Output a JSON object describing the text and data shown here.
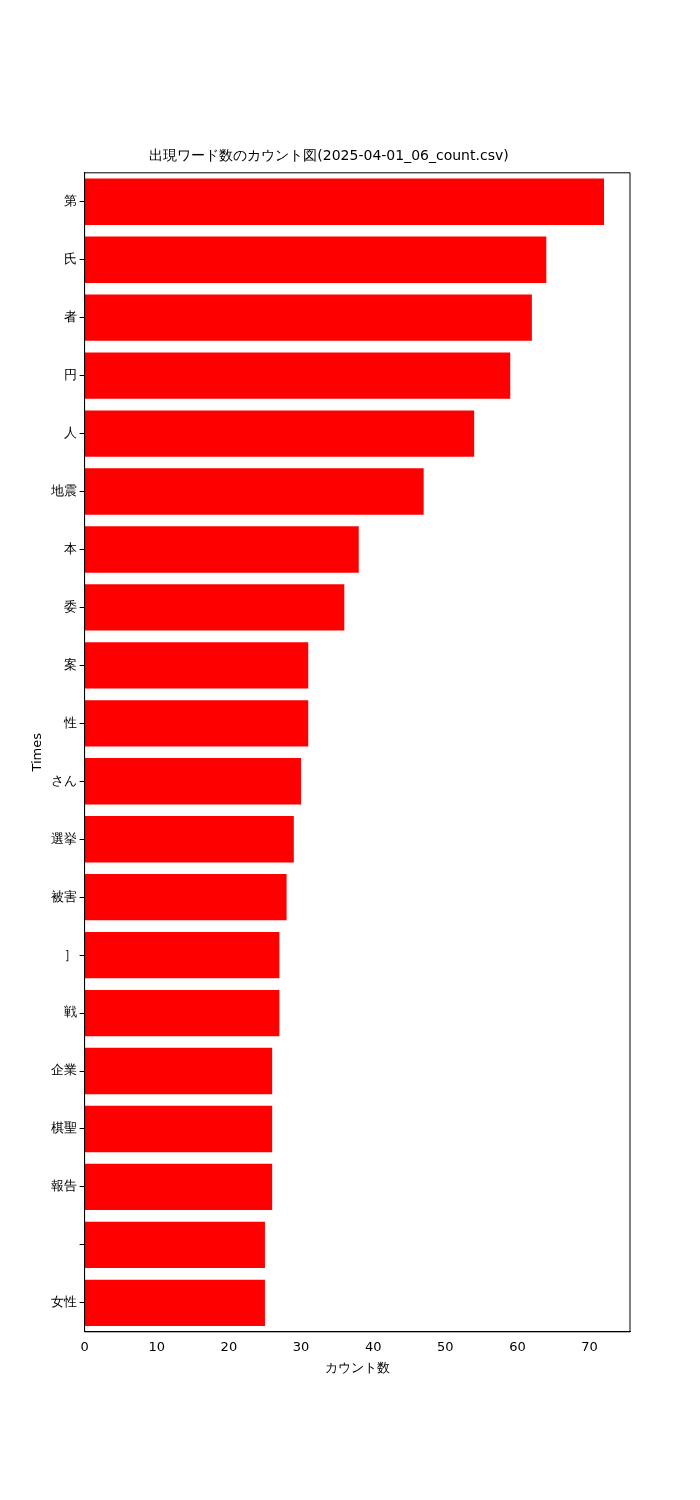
{
  "chart_data": {
    "type": "bar",
    "orientation": "horizontal",
    "title": "出現ワード数のカウント図(2025-04-01_06_count.csv)",
    "xlabel": "カウント数",
    "ylabel": "Times",
    "categories": [
      "第",
      "氏",
      "者",
      "円",
      "人",
      "地震",
      "本",
      "委",
      "案",
      "性",
      "さん",
      "選挙",
      "被害",
      "］",
      "戦",
      "企業",
      "棋聖",
      "報告",
      null,
      "女性"
    ],
    "values": [
      72,
      64,
      62,
      59,
      54,
      47,
      38,
      36,
      31,
      31,
      30,
      29,
      28,
      27,
      27,
      26,
      26,
      26,
      25,
      25
    ],
    "color": "#ff0000",
    "xlim": [
      0,
      75.6
    ],
    "xticks": [
      0,
      10,
      20,
      30,
      40,
      50,
      60,
      70
    ],
    "grid": false,
    "legend": false
  }
}
